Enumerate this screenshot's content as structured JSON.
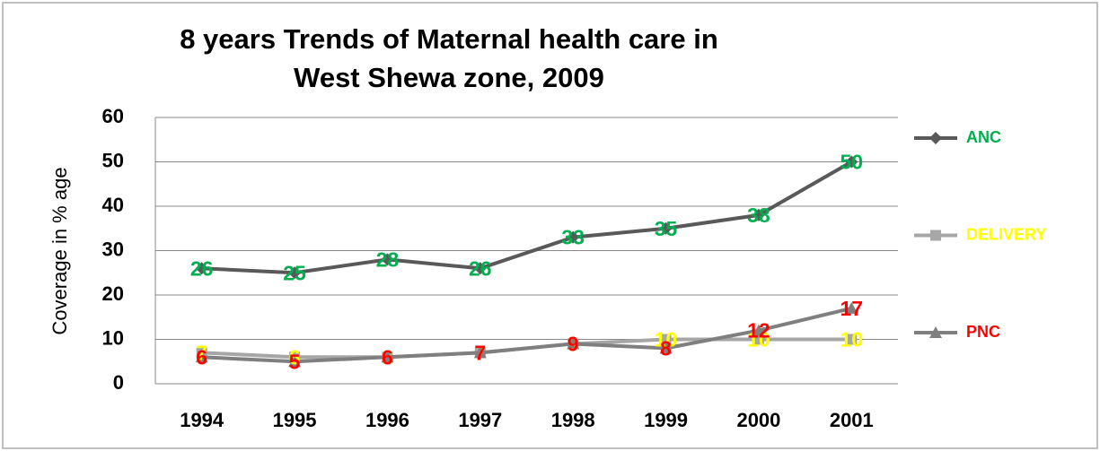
{
  "chart_data": {
    "type": "line",
    "title": "8 years Trends of Maternal health care in West Shewa zone, 2009",
    "y_label": "Coverage in % age",
    "categories": [
      "1994",
      "1995",
      "1996",
      "1997",
      "1998",
      "1999",
      "2000",
      "2001"
    ],
    "series": [
      {
        "name": "ANC",
        "color": "#595959",
        "label_color": "#00b050",
        "marker": "diamond",
        "values": [
          26,
          25,
          28,
          26,
          33,
          35,
          38,
          50
        ]
      },
      {
        "name": "DELIVERY",
        "color": "#a6a6a6",
        "label_color": "#ffff00",
        "marker": "square",
        "values": [
          7,
          6,
          6,
          7,
          9,
          10,
          10,
          10
        ]
      },
      {
        "name": "PNC",
        "color": "#7f7f7f",
        "label_color": "#ff0000",
        "marker": "triangle",
        "values": [
          6,
          5,
          6,
          7,
          9,
          8,
          12,
          17
        ]
      }
    ],
    "ylim": [
      0,
      60
    ],
    "yticks": [
      0,
      10,
      20,
      30,
      40,
      50,
      60
    ],
    "grid": true,
    "legend": "right"
  }
}
